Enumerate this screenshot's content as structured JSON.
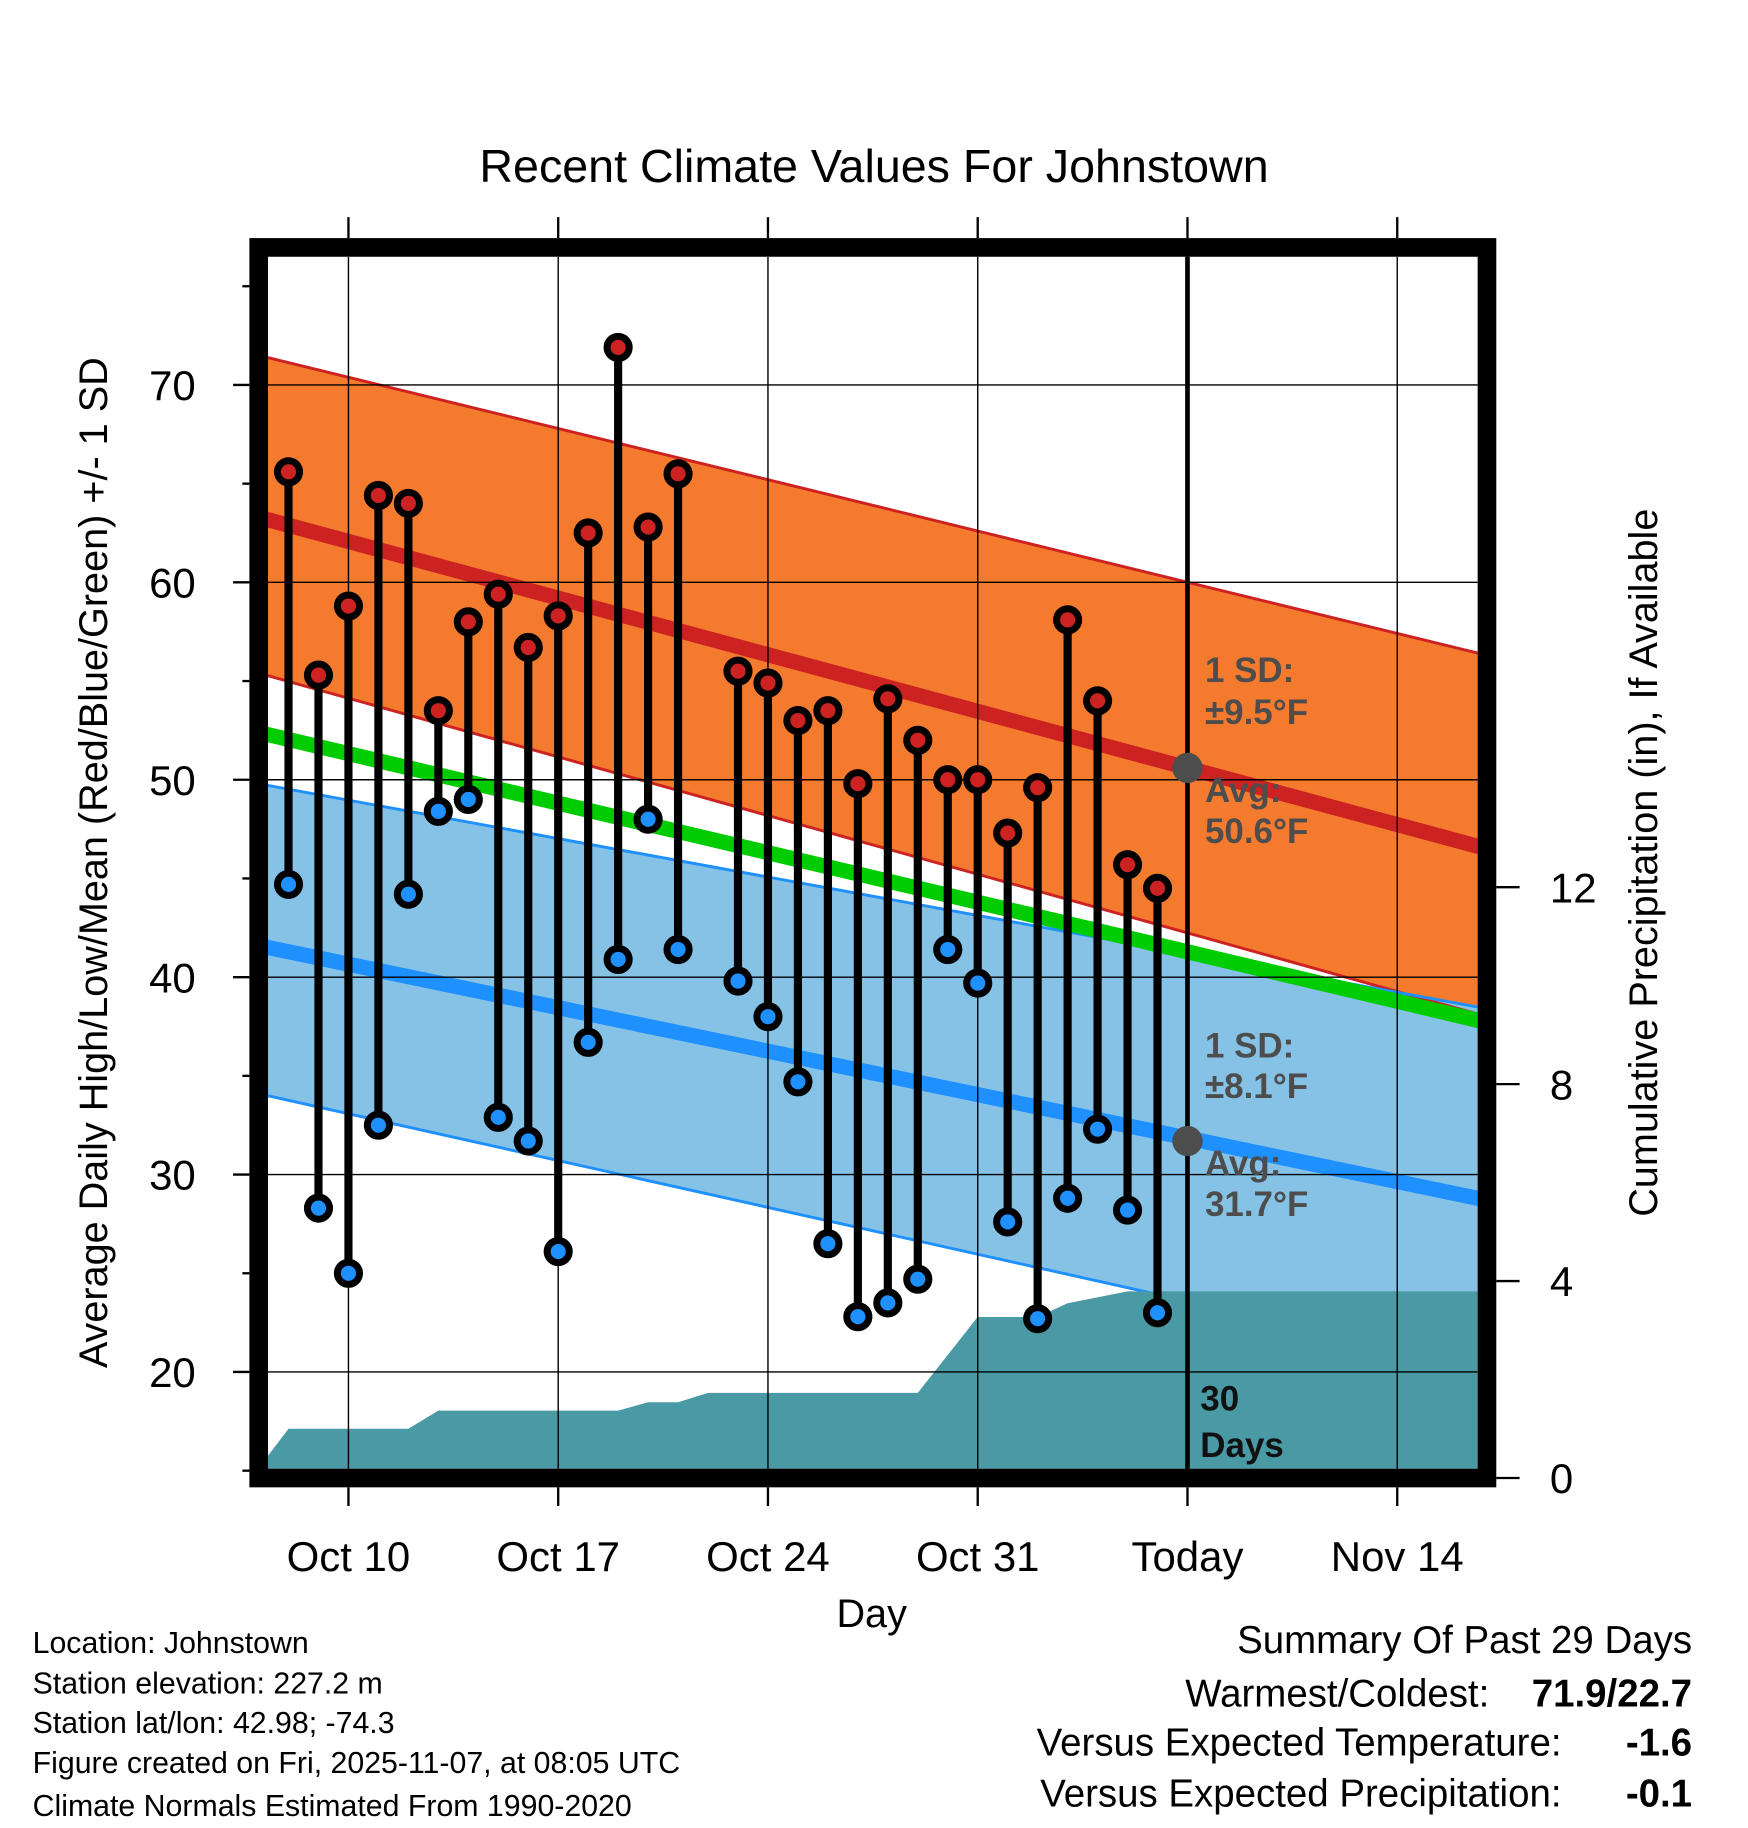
{
  "chart_data": {
    "type": "line",
    "title": "Recent Climate Values For Johnstown",
    "xlabel": "Day",
    "ylabel": "Average Daily High/Low/Mean (Red/Blue/Green) +/- 1 SD",
    "y2label": "Cumulative Precipitation (in), If Available",
    "x_units": "days relative to today (Nov 7)",
    "xlim": [
      -31,
      10
    ],
    "ylim": [
      14.6,
      77
    ],
    "y2lim": [
      0,
      22
    ],
    "x_ticks": [
      {
        "x": -28,
        "label": "Oct 10"
      },
      {
        "x": -21,
        "label": "Oct 17"
      },
      {
        "x": -14,
        "label": "Oct 24"
      },
      {
        "x": -7,
        "label": "Oct 31"
      },
      {
        "x": 0,
        "label": "Today"
      },
      {
        "x": 7,
        "label": "Nov 14"
      }
    ],
    "y_ticks": [
      "20",
      "30",
      "40",
      "50",
      "60",
      "70"
    ],
    "y2_ticks": [
      "0",
      "4",
      "8",
      "12"
    ],
    "observations": {
      "x": [
        -30,
        -29,
        -28,
        -27,
        -26,
        -25,
        -24,
        -23,
        -22,
        -21,
        -20,
        -19,
        -18,
        -17,
        -15,
        -14,
        -13,
        -12,
        -11,
        -10,
        -9,
        -8,
        -7,
        -6,
        -5,
        -4,
        -3,
        -2,
        -1
      ],
      "high": [
        65.6,
        55.3,
        58.8,
        64.4,
        64.0,
        53.5,
        58.0,
        59.4,
        56.7,
        58.3,
        62.5,
        71.9,
        62.8,
        65.5,
        55.5,
        54.9,
        53.0,
        53.5,
        49.8,
        54.1,
        52.0,
        50.0,
        50.0,
        47.3,
        49.6,
        58.1,
        54.0,
        45.7,
        44.5
      ],
      "low": [
        44.7,
        28.3,
        25.0,
        32.5,
        44.2,
        48.4,
        49.0,
        32.9,
        31.7,
        26.1,
        36.7,
        40.9,
        48.0,
        41.4,
        39.8,
        38.0,
        34.7,
        26.5,
        22.8,
        23.5,
        24.7,
        41.4,
        39.7,
        27.6,
        22.7,
        28.8,
        32.3,
        28.2,
        23.0
      ]
    },
    "normals": {
      "x": [
        -31,
        10
      ],
      "high_avg": [
        63.3,
        46.5
      ],
      "high_upper": [
        71.5,
        56.3
      ],
      "high_lower": [
        55.4,
        38.0
      ],
      "mean": [
        52.4,
        37.7
      ],
      "low_avg": [
        41.6,
        28.7
      ],
      "low_upper": [
        49.8,
        38.4
      ],
      "low_lower": [
        34.1,
        20.2
      ]
    },
    "precipitation": {
      "x": [
        -31,
        -30,
        -26,
        -25,
        -19,
        -18,
        -17,
        -16,
        -9,
        -7,
        -5,
        -4,
        -2,
        10
      ],
      "value": [
        0.2,
        1.0,
        1.0,
        1.37,
        1.37,
        1.54,
        1.54,
        1.73,
        1.73,
        3.27,
        3.27,
        3.55,
        3.79,
        3.79
      ]
    },
    "today_marker": {
      "high_avg": 50.6,
      "low_avg": 31.7
    },
    "annotations": {
      "high_sd_label": "1 SD:",
      "high_sd_value": "±9.5°F",
      "high_avg_label": "Avg:",
      "high_avg_value": "50.6°F",
      "low_sd_label": "1 SD:",
      "low_sd_value": "±8.1°F",
      "low_avg_label": "Avg:",
      "low_avg_value": "31.7°F",
      "days_count": "30",
      "days_label": "Days"
    },
    "colors": {
      "high": "#cc2222",
      "low": "#1e90ff",
      "mean": "#00cc00",
      "high_band": "#f47a2e",
      "low_band": "#85c2e6",
      "precip": "#4a9aa5"
    }
  },
  "footer": {
    "location": "Location: Johnstown",
    "elevation": "Station elevation: 227.2 m",
    "latlon": "Station lat/lon: 42.98; -74.3",
    "created": "Figure created on Fri, 2025-11-07, at 08:05 UTC",
    "normals": "Climate Normals Estimated From 1990-2020"
  },
  "summary": {
    "title": "Summary Of Past 29 Days",
    "warmest_coldest_label": "Warmest/Coldest:",
    "warmest_coldest_value": "71.9/22.7",
    "temp_label": "Versus Expected Temperature:",
    "temp_value": "-1.6",
    "temp_color": "#1e90ff",
    "precip_label": "Versus Expected Precipitation:",
    "precip_value": "-0.1",
    "precip_color": "#a0522d"
  }
}
